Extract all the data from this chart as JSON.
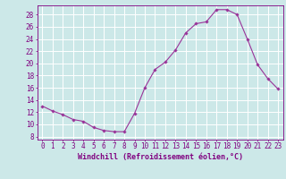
{
  "x": [
    0,
    1,
    2,
    3,
    4,
    5,
    6,
    7,
    8,
    9,
    10,
    11,
    12,
    13,
    14,
    15,
    16,
    17,
    18,
    19,
    20,
    21,
    22,
    23
  ],
  "y": [
    13,
    12.2,
    11.6,
    10.8,
    10.5,
    9.5,
    9.0,
    8.8,
    8.8,
    11.8,
    16.0,
    19.0,
    20.2,
    22.2,
    25.0,
    26.5,
    26.8,
    28.8,
    28.8,
    28.0,
    24.0,
    19.8,
    17.5,
    15.8
  ],
  "line_color": "#993399",
  "marker_color": "#993399",
  "bg_color": "#cce8e8",
  "grid_color": "#ffffff",
  "xlabel": "Windchill (Refroidissement éolien,°C)",
  "ylabel_ticks": [
    8,
    10,
    12,
    14,
    16,
    18,
    20,
    22,
    24,
    26,
    28
  ],
  "ylim": [
    7.5,
    29.5
  ],
  "xlim": [
    -0.5,
    23.5
  ],
  "tick_color": "#800080",
  "font_size": 5.5,
  "xlabel_font_size": 6.0
}
